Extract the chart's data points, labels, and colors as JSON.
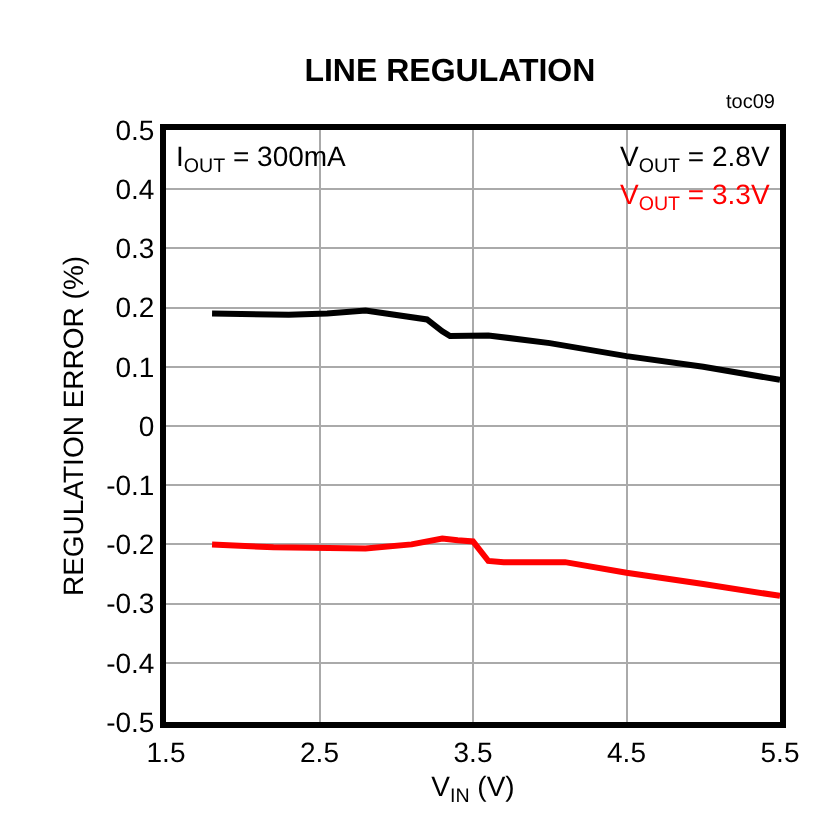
{
  "chart_data": {
    "type": "line",
    "title": "LINE REGULATION",
    "xlabel": "V$_{IN}$ (V)",
    "ylabel": "REGULATION ERROR (%)",
    "annotations": [
      "I$_{OUT}$ = 300mA",
      "toc09"
    ],
    "series": [
      {
        "name": "V$_{OUT}$ = 2.8V",
        "color": "#000000",
        "x": [
          1.8,
          2.3,
          2.55,
          2.8,
          3.2,
          3.3,
          3.35,
          3.6,
          4.0,
          4.5,
          5.0,
          5.5
        ],
        "values": [
          0.19,
          0.188,
          0.19,
          0.195,
          0.18,
          0.16,
          0.152,
          0.153,
          0.14,
          0.118,
          0.1,
          0.078
        ]
      },
      {
        "name": "V$_{OUT}$ = 3.3V",
        "color": "#ff0000",
        "x": [
          1.8,
          2.2,
          2.8,
          3.1,
          3.3,
          3.4,
          3.5,
          3.6,
          3.7,
          4.1,
          4.5,
          5.0,
          5.5
        ],
        "values": [
          -0.2,
          -0.205,
          -0.207,
          -0.2,
          -0.19,
          -0.193,
          -0.195,
          -0.228,
          -0.23,
          -0.23,
          -0.248,
          -0.267,
          -0.287
        ]
      }
    ],
    "xlim": [
      1.5,
      5.5
    ],
    "xticks": [
      1.5,
      2.5,
      3.5,
      4.5,
      5.5
    ],
    "ylim": [
      -0.5,
      0.5
    ],
    "yticks": [
      -0.5,
      -0.4,
      -0.3,
      -0.2,
      -0.1,
      0,
      0.1,
      0.2,
      0.3,
      0.4,
      0.5
    ],
    "grid": true,
    "legend": "top right",
    "line_style": "solid",
    "marker": "none"
  }
}
